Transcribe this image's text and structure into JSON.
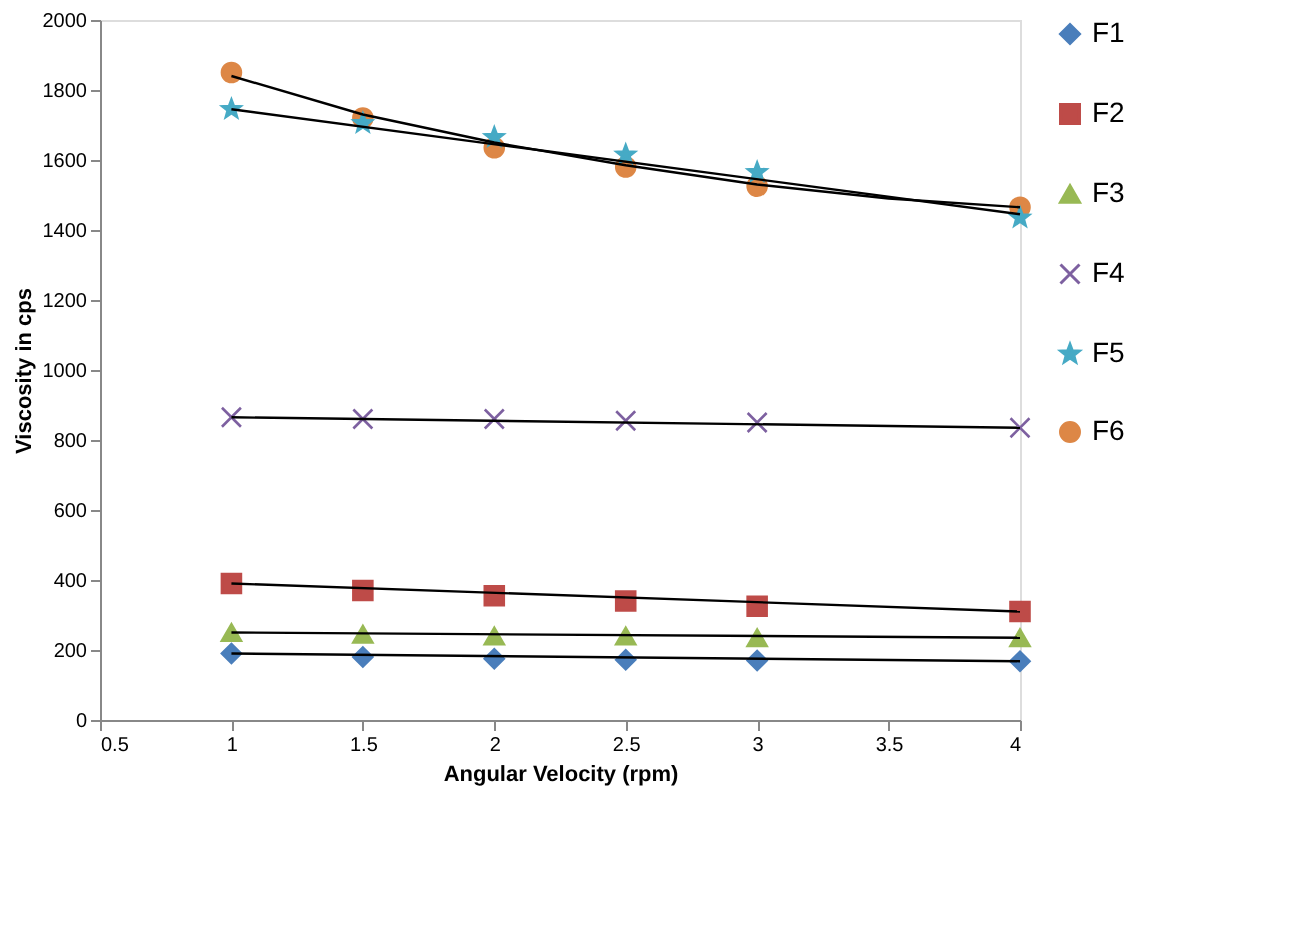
{
  "chart_data": {
    "type": "scatter",
    "xlabel": "Angular Velocity (rpm)",
    "ylabel": "Viscosity in cps",
    "x": [
      1,
      1.5,
      2,
      2.5,
      3,
      4
    ],
    "xlim": [
      0.5,
      4
    ],
    "xticks": [
      0.5,
      1,
      1.5,
      2,
      2.5,
      3,
      3.5,
      4
    ],
    "ylim": [
      0,
      2000
    ],
    "yticks": [
      0,
      200,
      400,
      600,
      800,
      1000,
      1200,
      1400,
      1600,
      1800,
      2000
    ],
    "grid": false,
    "legend": "right",
    "series": [
      {
        "name": "F1",
        "color": "#4a7ebb",
        "marker": "diamond",
        "values": [
          190,
          180,
          175,
          172,
          170,
          168
        ]
      },
      {
        "name": "F2",
        "color": "#be4b48",
        "marker": "square",
        "values": [
          390,
          370,
          355,
          340,
          325,
          310
        ]
      },
      {
        "name": "F3",
        "color": "#98b954",
        "marker": "triangle",
        "values": [
          250,
          245,
          240,
          240,
          235,
          235
        ]
      },
      {
        "name": "F4",
        "color": "#7d60a0",
        "marker": "cross",
        "values": [
          865,
          860,
          860,
          855,
          850,
          835
        ]
      },
      {
        "name": "F5",
        "color": "#46aac5",
        "marker": "star",
        "values": [
          1745,
          1705,
          1665,
          1615,
          1565,
          1435
        ]
      },
      {
        "name": "F6",
        "color": "#dd8746",
        "marker": "circle",
        "values": [
          1850,
          1720,
          1635,
          1580,
          1525,
          1465
        ]
      },
      {
        "type": "line",
        "color": "#000000",
        "x": [
          1,
          4
        ],
        "values": [
          190,
          168
        ]
      },
      {
        "type": "line",
        "color": "#000000",
        "x": [
          1,
          4
        ],
        "values": [
          390,
          310
        ]
      },
      {
        "type": "line",
        "color": "#000000",
        "x": [
          1,
          4
        ],
        "values": [
          250,
          235
        ]
      },
      {
        "type": "line",
        "color": "#000000",
        "x": [
          1,
          4
        ],
        "values": [
          865,
          835
        ]
      },
      {
        "type": "line",
        "color": "#000000",
        "x": [
          1,
          4
        ],
        "values": [
          1745,
          1445
        ]
      },
      {
        "type": "line",
        "color": "#000000",
        "x": [
          1,
          1.5,
          2,
          2.5,
          3,
          3.5,
          4
        ],
        "values": [
          1840,
          1730,
          1650,
          1585,
          1530,
          1490,
          1465
        ]
      }
    ]
  }
}
